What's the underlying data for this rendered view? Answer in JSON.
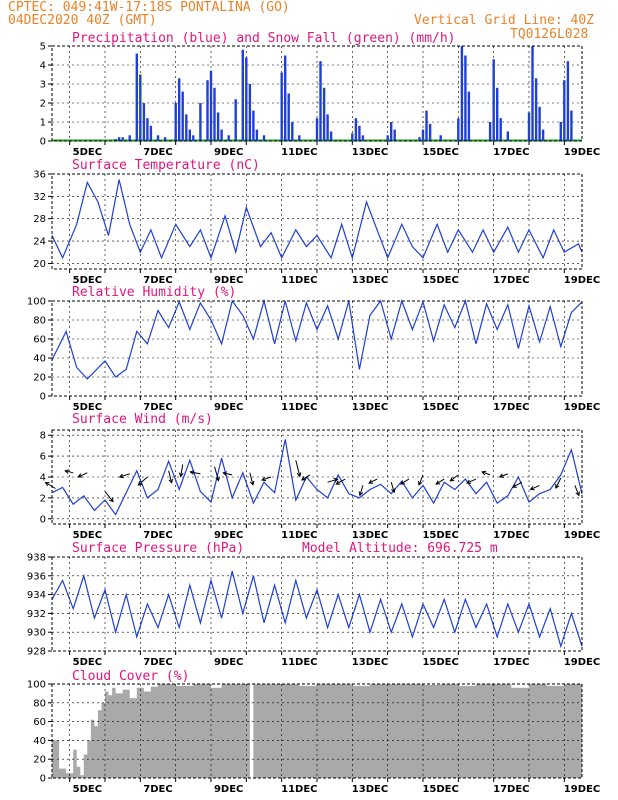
{
  "header": {
    "line1_left": "CPTEC:  049:41W-17:18S  PONTALINA (GO)",
    "line2_left": "04DEC2020 40Z (GMT)",
    "line2_right": "Vertical Grid Line: 40Z",
    "line3_right": "TQ0126L028"
  },
  "colors": {
    "header": "#e8832a",
    "title": "#e0157f",
    "series": "#1f3fd6",
    "snow": "#1aa51a",
    "cloud": "#a9a9a9",
    "grid": "#000000"
  },
  "chart_data": [
    {
      "id": "precip",
      "type": "bar",
      "title": "Precipitation (blue) and Snow Fall (green) (mm/h)",
      "ylim": [
        0,
        5
      ],
      "yticks": [
        0,
        1,
        2,
        3,
        4,
        5
      ],
      "xlim": [
        4,
        19
      ],
      "xticks": [
        "5DEC",
        "7DEC",
        "9DEC",
        "11DEC",
        "13DEC",
        "15DEC",
        "17DEC",
        "19DEC"
      ],
      "snow_values": "0 (flat green line along zero)",
      "x": [
        5.8,
        5.9,
        6.0,
        6.2,
        6.4,
        6.5,
        6.6,
        6.7,
        6.8,
        7.0,
        7.2,
        7.5,
        7.6,
        7.7,
        7.8,
        7.9,
        8.0,
        8.2,
        8.4,
        8.5,
        8.6,
        8.7,
        8.8,
        9.0,
        9.2,
        9.4,
        9.5,
        9.6,
        9.7,
        9.8,
        10.0,
        10.5,
        10.6,
        10.7,
        10.8,
        11.0,
        11.5,
        11.6,
        11.7,
        11.8,
        11.9,
        12.5,
        12.6,
        12.7,
        12.8,
        13.5,
        13.6,
        13.7,
        14.4,
        14.5,
        14.6,
        14.7,
        15.0,
        15.5,
        15.6,
        15.7,
        15.8,
        16.4,
        16.5,
        16.6,
        16.7,
        16.9,
        17.5,
        17.6,
        17.7,
        17.8,
        17.9,
        18.4,
        18.5,
        18.6,
        18.7
      ],
      "values": [
        0.1,
        0.2,
        0.2,
        0.3,
        4.6,
        3.5,
        2.0,
        1.2,
        0.8,
        0.3,
        0.2,
        2.0,
        3.3,
        2.6,
        1.4,
        0.6,
        0.3,
        2.0,
        3.2,
        3.7,
        2.8,
        1.5,
        0.6,
        0.3,
        2.2,
        4.8,
        4.4,
        3.0,
        1.6,
        0.6,
        0.3,
        3.6,
        4.5,
        2.5,
        1.0,
        0.3,
        1.2,
        4.2,
        2.8,
        1.4,
        0.5,
        0.4,
        1.2,
        0.8,
        0.3,
        0.3,
        1.0,
        0.6,
        0.2,
        0.6,
        1.6,
        0.9,
        0.3,
        1.2,
        5.0,
        4.5,
        2.6,
        1.0,
        4.3,
        2.8,
        1.2,
        0.5,
        1.5,
        5.0,
        3.3,
        1.8,
        0.6,
        1.0,
        3.2,
        4.2,
        1.6
      ]
    },
    {
      "id": "temp",
      "type": "line",
      "title": "Surface Temperature (nC)",
      "ylim": [
        19,
        36
      ],
      "yticks": [
        20,
        24,
        28,
        32,
        36
      ],
      "xlim": [
        4,
        19
      ],
      "xticks": [
        "5DEC",
        "7DEC",
        "9DEC",
        "11DEC",
        "13DEC",
        "15DEC",
        "17DEC",
        "19DEC"
      ],
      "x": [
        4.0,
        4.3,
        4.7,
        5.0,
        5.3,
        5.6,
        5.9,
        6.2,
        6.5,
        6.8,
        7.1,
        7.5,
        7.9,
        8.2,
        8.5,
        8.9,
        9.2,
        9.5,
        9.9,
        10.2,
        10.5,
        10.9,
        11.2,
        11.5,
        11.9,
        12.2,
        12.5,
        12.9,
        13.2,
        13.5,
        13.9,
        14.2,
        14.5,
        14.9,
        15.2,
        15.5,
        15.9,
        16.2,
        16.5,
        16.9,
        17.2,
        17.5,
        17.9,
        18.2,
        18.5,
        18.9,
        19.0
      ],
      "values": [
        25,
        21,
        27,
        34.5,
        31,
        25,
        35,
        27,
        22,
        26,
        21,
        27,
        23,
        26,
        21,
        28.5,
        22,
        30,
        23,
        25.5,
        21,
        26,
        23,
        25,
        21,
        27,
        21,
        31,
        26,
        21,
        27,
        23,
        21,
        27,
        22,
        26,
        22,
        26,
        22,
        26.5,
        22,
        26,
        21,
        26,
        22,
        23.5,
        22
      ]
    },
    {
      "id": "rh",
      "type": "line",
      "title": "Relative Humidity (%)",
      "ylim": [
        0,
        100
      ],
      "yticks": [
        0,
        20,
        40,
        60,
        80,
        100
      ],
      "xlim": [
        4,
        19
      ],
      "xticks": [
        "5DEC",
        "7DEC",
        "9DEC",
        "11DEC",
        "13DEC",
        "15DEC",
        "17DEC",
        "19DEC"
      ],
      "x": [
        4.0,
        4.4,
        4.7,
        5.0,
        5.5,
        5.8,
        6.1,
        6.4,
        6.7,
        7.0,
        7.3,
        7.6,
        7.9,
        8.2,
        8.5,
        8.8,
        9.1,
        9.4,
        9.7,
        10.0,
        10.3,
        10.6,
        10.9,
        11.2,
        11.5,
        11.8,
        12.1,
        12.4,
        12.7,
        13.0,
        13.3,
        13.6,
        13.9,
        14.2,
        14.5,
        14.8,
        15.1,
        15.4,
        15.7,
        16.0,
        16.3,
        16.6,
        16.9,
        17.2,
        17.5,
        17.8,
        18.1,
        18.4,
        18.7,
        19.0
      ],
      "values": [
        38,
        68,
        30,
        18,
        37,
        20,
        28,
        68,
        55,
        90,
        72,
        99,
        70,
        98,
        80,
        55,
        100,
        85,
        60,
        100,
        55,
        100,
        58,
        98,
        70,
        95,
        60,
        100,
        28,
        85,
        100,
        60,
        100,
        70,
        99,
        58,
        96,
        72,
        100,
        55,
        97,
        70,
        96,
        50,
        95,
        57,
        94,
        52,
        88,
        99
      ]
    },
    {
      "id": "wind",
      "type": "line",
      "title": "Surface Wind (m/s)",
      "ylim": [
        -0.5,
        8.5
      ],
      "yticks": [
        0,
        2,
        4,
        6,
        8
      ],
      "xlim": [
        4,
        19
      ],
      "xticks": [
        "5DEC",
        "7DEC",
        "9DEC",
        "11DEC",
        "13DEC",
        "15DEC",
        "17DEC",
        "19DEC"
      ],
      "x": [
        4.0,
        4.3,
        4.6,
        4.9,
        5.2,
        5.5,
        5.8,
        6.1,
        6.4,
        6.7,
        7.0,
        7.3,
        7.6,
        7.9,
        8.2,
        8.5,
        8.8,
        9.1,
        9.4,
        9.7,
        10.0,
        10.3,
        10.6,
        10.9,
        11.2,
        11.5,
        11.8,
        12.1,
        12.4,
        12.7,
        13.0,
        13.3,
        13.6,
        13.9,
        14.2,
        14.5,
        14.8,
        15.1,
        15.4,
        15.7,
        16.0,
        16.3,
        16.6,
        16.9,
        17.2,
        17.5,
        17.8,
        18.1,
        18.4,
        18.7,
        19.0
      ],
      "values": [
        2.5,
        3.0,
        1.4,
        2.2,
        0.8,
        1.8,
        0.4,
        2.5,
        4.6,
        2.0,
        2.8,
        5.5,
        2.8,
        5.6,
        2.6,
        1.6,
        5.8,
        2.0,
        4.4,
        1.5,
        3.5,
        2.5,
        7.6,
        1.8,
        4.0,
        2.8,
        2.0,
        4.2,
        2.4,
        2.0,
        2.8,
        3.3,
        2.4,
        3.6,
        2.0,
        3.2,
        1.5,
        3.5,
        2.8,
        3.8,
        2.4,
        3.5,
        1.5,
        2.2,
        4.0,
        1.6,
        2.4,
        2.8,
        4.2,
        6.6,
        2.4
      ],
      "arrows": [
        [
          4.1,
          2.9
        ],
        [
          4.6,
          4.4
        ],
        [
          5.0,
          4.4
        ],
        [
          5.5,
          2.6
        ],
        [
          6.2,
          4.3
        ],
        [
          6.7,
          4.0
        ],
        [
          7.3,
          4.6
        ],
        [
          7.7,
          5.2
        ],
        [
          8.2,
          4.3
        ],
        [
          8.6,
          5.0
        ],
        [
          9.1,
          4.2
        ],
        [
          9.6,
          4.4
        ],
        [
          10.2,
          4.0
        ],
        [
          10.9,
          5.6
        ],
        [
          11.3,
          4.2
        ],
        [
          11.8,
          3.5
        ],
        [
          12.3,
          3.8
        ],
        [
          12.8,
          3.2
        ],
        [
          13.2,
          3.8
        ],
        [
          13.6,
          3.5
        ],
        [
          14.1,
          3.8
        ],
        [
          14.5,
          4.2
        ],
        [
          15.1,
          3.8
        ],
        [
          15.5,
          4.2
        ],
        [
          16.0,
          3.8
        ],
        [
          16.4,
          4.2
        ],
        [
          16.9,
          4.3
        ],
        [
          17.3,
          3.5
        ],
        [
          17.8,
          3.2
        ],
        [
          18.4,
          3.9
        ],
        [
          18.8,
          3.2
        ]
      ]
    },
    {
      "id": "pressure",
      "type": "line",
      "title": "Surface Pressure (hPa)",
      "note": "Model Altitude: 696.725 m",
      "ylim": [
        928,
        938
      ],
      "yticks": [
        928,
        930,
        932,
        934,
        936,
        938
      ],
      "xlim": [
        4,
        19
      ],
      "xticks": [
        "5DEC",
        "7DEC",
        "9DEC",
        "11DEC",
        "13DEC",
        "15DEC",
        "17DEC",
        "19DEC"
      ],
      "x": [
        4.0,
        4.3,
        4.6,
        4.9,
        5.2,
        5.5,
        5.8,
        6.1,
        6.4,
        6.7,
        7.0,
        7.3,
        7.6,
        7.9,
        8.2,
        8.5,
        8.8,
        9.1,
        9.4,
        9.7,
        10.0,
        10.3,
        10.6,
        10.9,
        11.2,
        11.5,
        11.8,
        12.1,
        12.4,
        12.7,
        13.0,
        13.3,
        13.6,
        13.9,
        14.2,
        14.5,
        14.8,
        15.1,
        15.4,
        15.7,
        16.0,
        16.3,
        16.6,
        16.9,
        17.2,
        17.5,
        17.8,
        18.1,
        18.4,
        18.7,
        19.0
      ],
      "values": [
        933.5,
        935.5,
        932.5,
        936.0,
        931.5,
        934.5,
        930.0,
        934.0,
        929.5,
        933.0,
        930.5,
        934.0,
        930.5,
        935.0,
        931.0,
        935.5,
        931.5,
        936.5,
        932.0,
        936.0,
        931.0,
        935.0,
        931.0,
        935.5,
        931.5,
        934.5,
        930.5,
        934.0,
        930.5,
        934.0,
        930.0,
        933.5,
        930.0,
        933.0,
        929.5,
        933.0,
        930.5,
        933.5,
        930.0,
        933.5,
        930.5,
        933.0,
        929.5,
        933.0,
        930.0,
        933.0,
        929.5,
        932.5,
        928.5,
        932.0,
        928.5
      ]
    },
    {
      "id": "cloud",
      "type": "area",
      "title": "Cloud Cover (%)",
      "ylim": [
        0,
        100
      ],
      "yticks": [
        0,
        20,
        40,
        60,
        80,
        100
      ],
      "xlim": [
        4,
        19
      ],
      "xticks": [
        "5DEC",
        "7DEC",
        "9DEC",
        "11DEC",
        "13DEC",
        "15DEC",
        "17DEC",
        "19DEC"
      ],
      "x": [
        4.0,
        4.2,
        4.4,
        4.6,
        4.7,
        4.8,
        4.9,
        5.0,
        5.1,
        5.2,
        5.3,
        5.4,
        5.5,
        5.6,
        5.7,
        5.8,
        6.0,
        6.2,
        6.4,
        6.6,
        6.8,
        7.0,
        7.5,
        8.0,
        8.5,
        8.8,
        9.0,
        9.2,
        9.5,
        9.6,
        9.7,
        10.0,
        10.5,
        11.0,
        11.5,
        12.0,
        12.5,
        13.0,
        13.5,
        14.0,
        14.5,
        15.0,
        15.5,
        16.0,
        16.5,
        17.0,
        17.5,
        18.0,
        18.5,
        19.0
      ],
      "values": [
        40,
        10,
        5,
        30,
        12,
        3,
        25,
        40,
        62,
        55,
        72,
        80,
        92,
        88,
        96,
        90,
        94,
        85,
        96,
        92,
        97,
        100,
        98,
        100,
        96,
        100,
        100,
        100,
        100,
        0,
        100,
        100,
        100,
        98,
        100,
        100,
        98,
        100,
        100,
        100,
        99,
        100,
        98,
        100,
        100,
        96,
        100,
        98,
        100,
        100
      ]
    }
  ]
}
